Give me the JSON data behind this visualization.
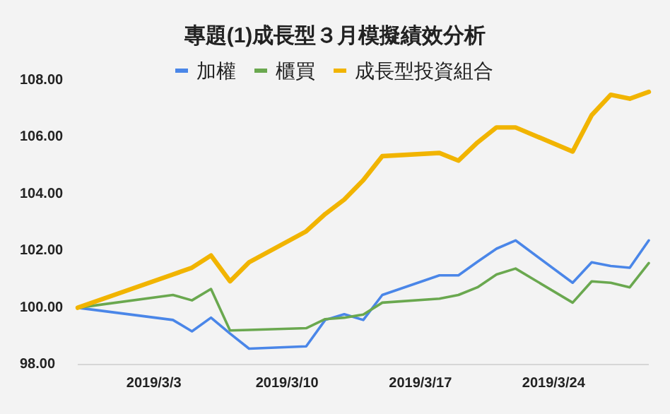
{
  "chart_data": {
    "type": "line",
    "title": "專題(1)成長型３月模擬績效分析",
    "x": [
      "2019-02-27",
      "2019-03-04",
      "2019-03-05",
      "2019-03-06",
      "2019-03-07",
      "2019-03-08",
      "2019-03-11",
      "2019-03-12",
      "2019-03-13",
      "2019-03-14",
      "2019-03-15",
      "2019-03-18",
      "2019-03-19",
      "2019-03-20",
      "2019-03-21",
      "2019-03-22",
      "2019-03-25",
      "2019-03-26",
      "2019-03-27",
      "2019-03-28",
      "2019-03-29"
    ],
    "series": [
      {
        "name": "加權",
        "color": "#4a86e8",
        "values": [
          100,
          99.57,
          99.17,
          99.65,
          99.09,
          98.56,
          98.64,
          99.57,
          99.77,
          99.57,
          100.45,
          101.14,
          101.14,
          101.62,
          102.08,
          102.37,
          100.88,
          101.6,
          101.47,
          101.41,
          102.37
        ]
      },
      {
        "name": "櫃買",
        "color": "#6aa84f",
        "values": [
          100,
          100.45,
          100.26,
          100.66,
          99.2,
          99.22,
          99.28,
          99.6,
          99.65,
          99.76,
          100.18,
          100.32,
          100.45,
          100.72,
          101.17,
          101.38,
          100.18,
          100.93,
          100.88,
          100.72,
          101.57
        ]
      },
      {
        "name": "成長型投資組合",
        "color": "#f1b400",
        "values": [
          100,
          101.17,
          101.41,
          101.84,
          100.93,
          101.6,
          102.69,
          103.3,
          103.81,
          104.49,
          105.34,
          105.45,
          105.18,
          105.82,
          106.35,
          106.35,
          105.5,
          106.78,
          107.5,
          107.36,
          107.6
        ]
      }
    ],
    "xticks": [
      {
        "value": "2019-03-03",
        "label": "2019/3/3"
      },
      {
        "value": "2019-03-10",
        "label": "2019/3/10"
      },
      {
        "value": "2019-03-17",
        "label": "2019/3/17"
      },
      {
        "value": "2019-03-24",
        "label": "2019/3/24"
      }
    ],
    "ylim": [
      98,
      108
    ],
    "xlim": [
      "2019-02-27",
      "2019-03-29"
    ],
    "yticks": [
      {
        "value": 98,
        "label": "98.00"
      },
      {
        "value": 100,
        "label": "100.00"
      },
      {
        "value": 102,
        "label": "102.00"
      },
      {
        "value": 104,
        "label": "104.00"
      },
      {
        "value": 106,
        "label": "106.00"
      },
      {
        "value": 108,
        "label": "108.00"
      }
    ],
    "grid": false,
    "legend": "top",
    "marker": "none",
    "line_style": "solid"
  }
}
